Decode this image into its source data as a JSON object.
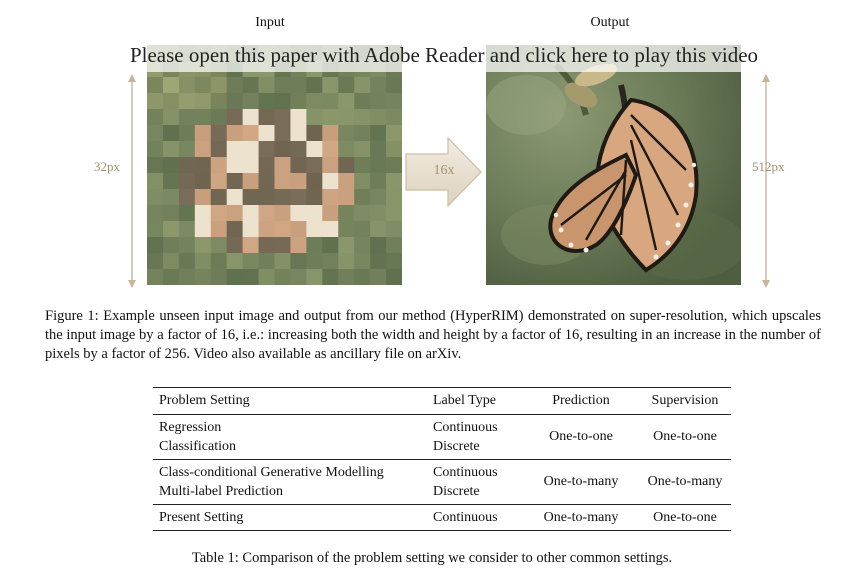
{
  "figure": {
    "input_title": "Input",
    "output_title": "Output",
    "video_link_text": "Please open this paper with Adobe Reader and click here to play this video",
    "input_size_label": "32px",
    "output_size_label": "512px",
    "scale_label": "16x",
    "caption": "Figure 1: Example unseen input image and output from our method (HyperRIM) demonstrated on super-resolution, which upscales the input image by a factor of 16, i.e.: increasing both the width and height by a factor of 16, resulting in an increase in the number of pixels by a factor of 256. Video also available as ancillary file on arXiv."
  },
  "table": {
    "headers": [
      "Problem Setting",
      "Label Type",
      "Prediction",
      "Supervision"
    ],
    "groups": [
      {
        "settings": [
          "Regression",
          "Classification"
        ],
        "label_types": [
          "Continuous",
          "Discrete"
        ],
        "prediction": "One-to-one",
        "supervision": "One-to-one"
      },
      {
        "settings": [
          "Class-conditional Generative Modelling",
          "Multi-label Prediction"
        ],
        "label_types": [
          "Continuous",
          "Discrete"
        ],
        "prediction": "One-to-many",
        "supervision": "One-to-many"
      },
      {
        "settings": [
          "Present Setting"
        ],
        "label_types": [
          "Continuous"
        ],
        "prediction": "One-to-many",
        "supervision": "One-to-one"
      }
    ],
    "caption": "Table 1: Comparison of the problem setting we consider to other common settings."
  }
}
